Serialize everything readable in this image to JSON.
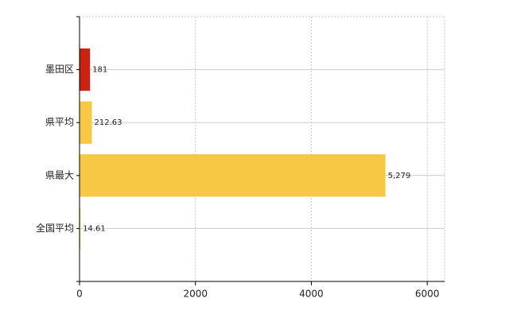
{
  "chart_data": {
    "type": "bar",
    "orientation": "horizontal",
    "categories": [
      "墨田区",
      "県平均",
      "県最大",
      "全国平均"
    ],
    "values": [
      181,
      212.63,
      5279,
      14.61
    ],
    "value_labels": [
      "181",
      "212.63",
      "5,279",
      "14.61"
    ],
    "colors": [
      "#cc2211",
      "#f7c843",
      "#f7c843",
      "#f7c843"
    ],
    "xlim": [
      0,
      6300
    ],
    "xticks": [
      0,
      2000,
      4000,
      6000
    ],
    "grid": true
  }
}
